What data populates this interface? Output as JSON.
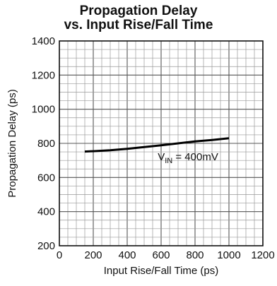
{
  "chart_data": {
    "type": "line",
    "title_line1": "Propagation Delay",
    "title_line2": "vs. Input Rise/Fall Time",
    "xlabel": "Input Rise/Fall Time (ps)",
    "ylabel": "Propagation Delay (ps)",
    "xlim": [
      0,
      1200
    ],
    "ylim": [
      200,
      1400
    ],
    "xticks": [
      0,
      200,
      400,
      600,
      800,
      1000,
      1200
    ],
    "yticks": [
      200,
      400,
      600,
      800,
      1000,
      1200,
      1400
    ],
    "grid": true,
    "series": [
      {
        "x": [
          150,
          200,
          300,
          400,
          500,
          600,
          700,
          800,
          900,
          1000
        ],
        "y": [
          752,
          754,
          760,
          768,
          778,
          789,
          800,
          811,
          820,
          830
        ]
      }
    ],
    "annotation": {
      "prefix": "V",
      "subscript": "IN",
      "suffix": " = 400mV",
      "x": 580,
      "y": 700
    }
  }
}
